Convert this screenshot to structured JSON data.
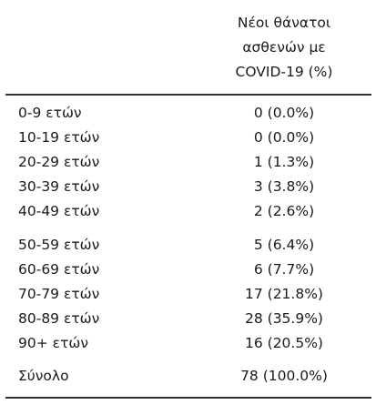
{
  "table": {
    "header": {
      "line1": "Νέοι θάνατοι",
      "line2": "ασθενών με",
      "line3": "COVID-19 (%)"
    },
    "rows": [
      {
        "label": "0-9 ετών",
        "value": "0 (0.0%)"
      },
      {
        "label": "10-19 ετών",
        "value": "0 (0.0%)"
      },
      {
        "label": "20-29 ετών",
        "value": "1 (1.3%)"
      },
      {
        "label": "30-39 ετών",
        "value": "3 (3.8%)"
      },
      {
        "label": "40-49 ετών",
        "value": "2 (2.6%)"
      },
      {
        "label": "50-59 ετών",
        "value": "5 (6.4%)"
      },
      {
        "label": "60-69 ετών",
        "value": "6 (7.7%)"
      },
      {
        "label": "70-79 ετών",
        "value": "17 (21.8%)"
      },
      {
        "label": "80-89 ετών",
        "value": "28 (35.9%)"
      },
      {
        "label": "90+ ετών",
        "value": "16 (20.5%)"
      }
    ],
    "total": {
      "label": "Σύνολο",
      "value": "78 (100.0%)"
    }
  }
}
